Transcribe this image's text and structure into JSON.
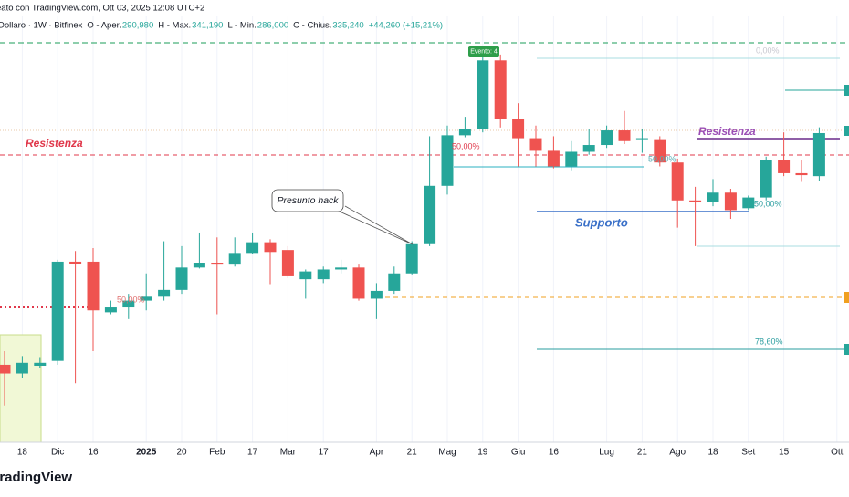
{
  "chart_data": {
    "type": "candlestick",
    "header": {
      "credit": "eato con TradingView.com, Ott 03, 2025 12:08 UTC+2",
      "symbol": "Dollaro · 1W · Bitfinex",
      "ohlc": [
        {
          "label": "O - Aper.",
          "value": "290,980"
        },
        {
          "label": "H - Max.",
          "value": "341,190"
        },
        {
          "label": "L - Min.",
          "value": "286,000"
        },
        {
          "label": "C - Chius.",
          "value": "335,240"
        }
      ],
      "change": "+44,260 (+15,21%)"
    },
    "categories": [
      null,
      "18",
      null,
      "Dic",
      null,
      "16",
      null,
      null,
      "2025",
      null,
      "20",
      null,
      "Feb",
      null,
      "17",
      null,
      "Mar",
      null,
      "17",
      null,
      null,
      "Apr",
      null,
      "21",
      null,
      "Mag",
      null,
      "19",
      null,
      "Giu",
      null,
      "16",
      null,
      null,
      "Lug",
      null,
      "21",
      null,
      "Ago",
      null,
      "18",
      null,
      "Set",
      null,
      "15",
      null,
      null,
      "Ott"
    ],
    "open": [
      97,
      88,
      96,
      101,
      203,
      203,
      151,
      156,
      163,
      167,
      174,
      197,
      202,
      200,
      212,
      223,
      215,
      185,
      185,
      195,
      197,
      165,
      173,
      191,
      221,
      281,
      333,
      339,
      410,
      350,
      330,
      317,
      301,
      316,
      323,
      338,
      329,
      329,
      305,
      266,
      264,
      274,
      258,
      269,
      308,
      294,
      290.98,
      null
    ],
    "high": [
      111,
      106,
      104,
      205,
      214,
      217,
      163,
      170,
      191,
      224,
      219,
      233,
      228,
      228,
      233,
      226,
      219,
      195,
      198,
      205,
      200,
      181,
      198,
      224,
      332,
      343,
      352,
      414,
      416,
      366,
      343,
      332,
      327,
      339,
      343,
      358,
      339,
      332,
      309,
      280,
      288,
      278,
      271,
      311,
      336,
      308,
      341.19,
      null
    ],
    "low": [
      55,
      83,
      94,
      97,
      78,
      111,
      149,
      144,
      153,
      163,
      170,
      196,
      149,
      198,
      211,
      180,
      186,
      165,
      181,
      191,
      163,
      144,
      170,
      189,
      219,
      272,
      331,
      336,
      341,
      301,
      301,
      299,
      297,
      313,
      320,
      324,
      315,
      301,
      238,
      219,
      260,
      247,
      256,
      266,
      291,
      285,
      286,
      null
    ],
    "close": [
      88,
      99,
      99,
      203,
      201,
      153,
      156,
      163,
      167,
      174,
      197,
      202,
      200,
      212,
      223,
      213,
      188,
      193,
      195,
      197,
      165,
      173,
      191,
      221,
      281,
      333,
      339,
      410,
      350,
      330,
      317,
      301,
      316,
      323,
      338,
      327,
      330,
      305,
      266,
      264,
      274,
      256,
      269,
      308,
      294,
      292,
      335.24,
      null
    ],
    "up_color": "#26a69a",
    "down_color": "#ef5350",
    "ylim": [
      17.2,
      455.3
    ],
    "grid": true,
    "annotations": {
      "resistance_left": "Resistenza",
      "resistance_right": "Resistenza",
      "support": "Supporto",
      "hack": "Presunto hack",
      "event": "Evento: 4",
      "fib": [
        "50,00%",
        "50,00%",
        "50,00%",
        "50,00%",
        "0,00%",
        "78,60%"
      ]
    },
    "watermark": "TradingView"
  }
}
